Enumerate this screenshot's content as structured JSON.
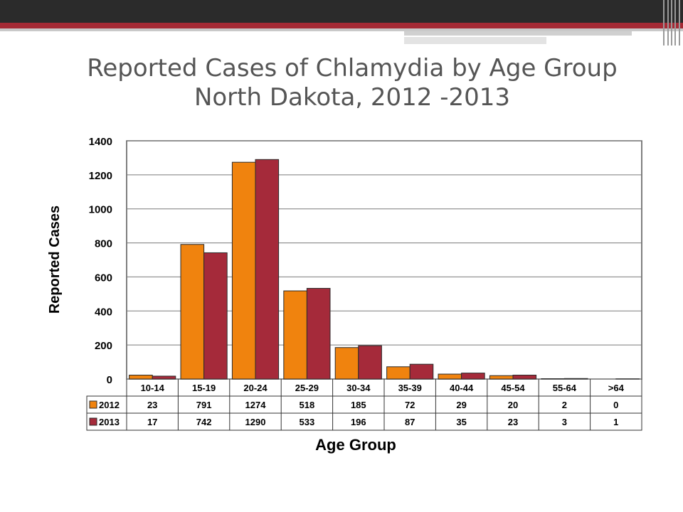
{
  "slide": {
    "title_line1": "Reported Cases of Chlamydia by Age Group",
    "title_line2": "North Dakota, 2012 -2013"
  },
  "colors": {
    "series_2012": "#f0830e",
    "series_2013": "#a52a3a",
    "header_bar": "#2b2b2b",
    "accent_red": "#a52a35",
    "title_text": "#555555"
  },
  "chart_data": {
    "type": "bar",
    "categories": [
      "10-14",
      "15-19",
      "20-24",
      "25-29",
      "30-34",
      "35-39",
      "40-44",
      "45-54",
      "55-64",
      ">64"
    ],
    "series": [
      {
        "name": "2012",
        "values": [
          23,
          791,
          1274,
          518,
          185,
          72,
          29,
          20,
          2,
          0
        ]
      },
      {
        "name": "2013",
        "values": [
          17,
          742,
          1290,
          533,
          196,
          87,
          35,
          23,
          3,
          1
        ]
      }
    ],
    "ylabel": "Reported Cases",
    "xlabel": "Age Group",
    "ylim": [
      0,
      1400
    ],
    "yticks": [
      0,
      200,
      400,
      600,
      800,
      1000,
      1200,
      1400
    ],
    "grid": true,
    "legend": "data-table"
  }
}
